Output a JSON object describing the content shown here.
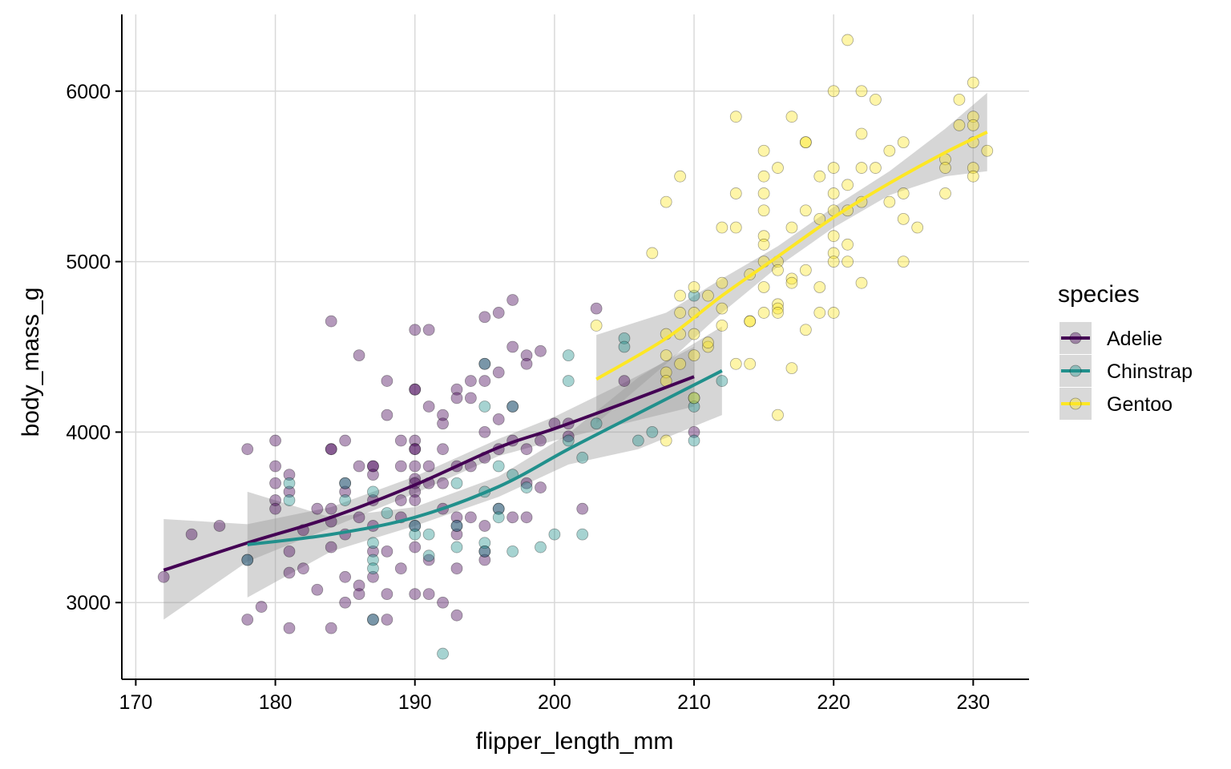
{
  "chart_data": {
    "type": "scatter",
    "title": "",
    "xlabel": "flipper_length_mm",
    "ylabel": "body_mass_g",
    "xlim": [
      169,
      234
    ],
    "ylim": [
      2550,
      6450
    ],
    "x_ticks": [
      170,
      180,
      190,
      200,
      210,
      220,
      230
    ],
    "y_ticks": [
      3000,
      4000,
      5000,
      6000
    ],
    "grid": true,
    "legend_title": "species",
    "legend_position": "right",
    "smoother": "loess with confidence band",
    "series": [
      {
        "name": "Adelie",
        "color": "#440154",
        "points": [
          [
            172,
            3150
          ],
          [
            174,
            3400
          ],
          [
            176,
            3450
          ],
          [
            178,
            3900
          ],
          [
            178,
            2900
          ],
          [
            178,
            3250
          ],
          [
            179,
            2975
          ],
          [
            180,
            3950
          ],
          [
            180,
            3800
          ],
          [
            180,
            3700
          ],
          [
            180,
            3600
          ],
          [
            180,
            3550
          ],
          [
            181,
            3750
          ],
          [
            181,
            3650
          ],
          [
            181,
            3300
          ],
          [
            181,
            3175
          ],
          [
            181,
            2850
          ],
          [
            182,
            3200
          ],
          [
            182,
            3425
          ],
          [
            183,
            3550
          ],
          [
            183,
            3075
          ],
          [
            184,
            4650
          ],
          [
            184,
            3900
          ],
          [
            184,
            3900
          ],
          [
            184,
            3550
          ],
          [
            184,
            3475
          ],
          [
            184,
            3325
          ],
          [
            184,
            2850
          ],
          [
            185,
            3950
          ],
          [
            185,
            3700
          ],
          [
            185,
            3650
          ],
          [
            185,
            3400
          ],
          [
            185,
            3150
          ],
          [
            185,
            3000
          ],
          [
            186,
            4450
          ],
          [
            186,
            3800
          ],
          [
            186,
            3500
          ],
          [
            186,
            3100
          ],
          [
            186,
            3050
          ],
          [
            187,
            3800
          ],
          [
            187,
            3800
          ],
          [
            187,
            3750
          ],
          [
            187,
            3600
          ],
          [
            187,
            3450
          ],
          [
            187,
            3300
          ],
          [
            187,
            3150
          ],
          [
            187,
            2900
          ],
          [
            188,
            4300
          ],
          [
            188,
            4100
          ],
          [
            188,
            3300
          ],
          [
            188,
            3050
          ],
          [
            188,
            2900
          ],
          [
            189,
            3950
          ],
          [
            189,
            3800
          ],
          [
            189,
            3600
          ],
          [
            189,
            3500
          ],
          [
            189,
            3200
          ],
          [
            190,
            4600
          ],
          [
            190,
            4250
          ],
          [
            190,
            4250
          ],
          [
            190,
            3950
          ],
          [
            190,
            3900
          ],
          [
            190,
            3900
          ],
          [
            190,
            3800
          ],
          [
            190,
            3725
          ],
          [
            190,
            3700
          ],
          [
            190,
            3650
          ],
          [
            190,
            3600
          ],
          [
            190,
            3450
          ],
          [
            190,
            3325
          ],
          [
            190,
            3050
          ],
          [
            191,
            4600
          ],
          [
            191,
            4150
          ],
          [
            191,
            3800
          ],
          [
            191,
            3700
          ],
          [
            191,
            3250
          ],
          [
            191,
            3050
          ],
          [
            192,
            4100
          ],
          [
            192,
            4050
          ],
          [
            192,
            3900
          ],
          [
            192,
            3700
          ],
          [
            192,
            3550
          ],
          [
            192,
            3000
          ],
          [
            193,
            4250
          ],
          [
            193,
            4200
          ],
          [
            193,
            3800
          ],
          [
            193,
            3500
          ],
          [
            193,
            3450
          ],
          [
            193,
            3400
          ],
          [
            193,
            3200
          ],
          [
            193,
            2925
          ],
          [
            194,
            4300
          ],
          [
            194,
            4200
          ],
          [
            194,
            3800
          ],
          [
            194,
            3500
          ],
          [
            195,
            4675
          ],
          [
            195,
            4400
          ],
          [
            195,
            4300
          ],
          [
            195,
            4000
          ],
          [
            195,
            3850
          ],
          [
            195,
            3450
          ],
          [
            195,
            3300
          ],
          [
            195,
            3250
          ],
          [
            196,
            4700
          ],
          [
            196,
            4350
          ],
          [
            196,
            4075
          ],
          [
            196,
            3900
          ],
          [
            196,
            3550
          ],
          [
            197,
            4775
          ],
          [
            197,
            4500
          ],
          [
            197,
            4150
          ],
          [
            197,
            3950
          ],
          [
            197,
            3500
          ],
          [
            198,
            4450
          ],
          [
            198,
            4400
          ],
          [
            198,
            3900
          ],
          [
            198,
            3700
          ],
          [
            198,
            3500
          ],
          [
            199,
            4475
          ],
          [
            199,
            3950
          ],
          [
            199,
            3675
          ],
          [
            200,
            4050
          ],
          [
            201,
            4050
          ],
          [
            201,
            3975
          ],
          [
            202,
            3550
          ],
          [
            203,
            4725
          ],
          [
            205,
            4300
          ],
          [
            210,
            4000
          ]
        ],
        "smooth": {
          "x": [
            172,
            178,
            184,
            190,
            196,
            200,
            205,
            210
          ],
          "y": [
            3190,
            3350,
            3500,
            3690,
            3910,
            4020,
            4170,
            4325
          ],
          "lower": [
            2900,
            3240,
            3440,
            3640,
            3860,
            3950,
            4050,
            4150
          ],
          "upper": [
            3490,
            3460,
            3560,
            3740,
            3960,
            4090,
            4290,
            4500
          ]
        }
      },
      {
        "name": "Chinstrap",
        "color": "#21908C",
        "points": [
          [
            178,
            3250
          ],
          [
            181,
            3700
          ],
          [
            181,
            3600
          ],
          [
            185,
            3700
          ],
          [
            185,
            3600
          ],
          [
            187,
            3650
          ],
          [
            187,
            3350
          ],
          [
            187,
            3250
          ],
          [
            187,
            3200
          ],
          [
            187,
            2900
          ],
          [
            188,
            3525
          ],
          [
            190,
            3450
          ],
          [
            190,
            3400
          ],
          [
            191,
            3400
          ],
          [
            191,
            3275
          ],
          [
            192,
            2700
          ],
          [
            193,
            3700
          ],
          [
            193,
            3450
          ],
          [
            193,
            3325
          ],
          [
            195,
            4400
          ],
          [
            195,
            4150
          ],
          [
            195,
            3650
          ],
          [
            195,
            3350
          ],
          [
            195,
            3300
          ],
          [
            196,
            3800
          ],
          [
            196,
            3550
          ],
          [
            196,
            3500
          ],
          [
            197,
            4150
          ],
          [
            197,
            3750
          ],
          [
            197,
            3300
          ],
          [
            198,
            3675
          ],
          [
            199,
            3325
          ],
          [
            200,
            3400
          ],
          [
            201,
            4450
          ],
          [
            201,
            4300
          ],
          [
            201,
            3950
          ],
          [
            202,
            3850
          ],
          [
            202,
            3400
          ],
          [
            203,
            4050
          ],
          [
            205,
            4550
          ],
          [
            205,
            4500
          ],
          [
            206,
            3950
          ],
          [
            207,
            4000
          ],
          [
            210,
            4800
          ],
          [
            210,
            4200
          ],
          [
            210,
            4150
          ],
          [
            210,
            3950
          ],
          [
            212,
            4300
          ]
        ],
        "smooth": {
          "x": [
            178,
            184,
            190,
            196,
            201,
            206,
            212
          ],
          "y": [
            3340,
            3400,
            3500,
            3680,
            3900,
            4110,
            4360
          ],
          "lower": [
            3030,
            3300,
            3450,
            3620,
            3810,
            3900,
            4100
          ],
          "upper": [
            3650,
            3500,
            3560,
            3740,
            3990,
            4320,
            4620
          ]
        }
      },
      {
        "name": "Gentoo",
        "color": "#FDE725",
        "points": [
          [
            203,
            4625
          ],
          [
            207,
            5050
          ],
          [
            208,
            5350
          ],
          [
            208,
            4575
          ],
          [
            208,
            4450
          ],
          [
            208,
            4350
          ],
          [
            208,
            4300
          ],
          [
            208,
            3950
          ],
          [
            209,
            5500
          ],
          [
            209,
            4800
          ],
          [
            209,
            4700
          ],
          [
            209,
            4575
          ],
          [
            209,
            4400
          ],
          [
            210,
            4850
          ],
          [
            210,
            4700
          ],
          [
            210,
            4575
          ],
          [
            210,
            4450
          ],
          [
            210,
            4200
          ],
          [
            211,
            4800
          ],
          [
            211,
            4500
          ],
          [
            212,
            5200
          ],
          [
            212,
            4875
          ],
          [
            212,
            4725
          ],
          [
            212,
            4625
          ],
          [
            213,
            5400
          ],
          [
            213,
            5200
          ],
          [
            213,
            4400
          ],
          [
            214,
            4925
          ],
          [
            214,
            4650
          ],
          [
            214,
            4650
          ],
          [
            214,
            4400
          ],
          [
            215,
            5650
          ],
          [
            215,
            5500
          ],
          [
            215,
            5400
          ],
          [
            215,
            5300
          ],
          [
            215,
            5150
          ],
          [
            215,
            5100
          ],
          [
            215,
            5000
          ],
          [
            215,
            4850
          ],
          [
            215,
            4700
          ],
          [
            216,
            5550
          ],
          [
            216,
            5000
          ],
          [
            216,
            4750
          ],
          [
            216,
            4725
          ],
          [
            216,
            4700
          ],
          [
            216,
            4100
          ],
          [
            217,
            5850
          ],
          [
            217,
            5200
          ],
          [
            217,
            4900
          ],
          [
            217,
            4875
          ],
          [
            217,
            4375
          ],
          [
            218,
            5700
          ],
          [
            218,
            5700
          ],
          [
            218,
            5300
          ],
          [
            218,
            4950
          ],
          [
            218,
            4600
          ],
          [
            219,
            5500
          ],
          [
            219,
            5250
          ],
          [
            219,
            4850
          ],
          [
            219,
            4700
          ],
          [
            220,
            6000
          ],
          [
            220,
            5550
          ],
          [
            220,
            5400
          ],
          [
            220,
            5300
          ],
          [
            220,
            5150
          ],
          [
            220,
            5050
          ],
          [
            220,
            5000
          ],
          [
            220,
            4700
          ],
          [
            221,
            6300
          ],
          [
            221,
            5450
          ],
          [
            221,
            5300
          ],
          [
            221,
            5100
          ],
          [
            221,
            5000
          ],
          [
            222,
            6000
          ],
          [
            222,
            5750
          ],
          [
            222,
            5550
          ],
          [
            222,
            5350
          ],
          [
            222,
            4875
          ],
          [
            223,
            5950
          ],
          [
            223,
            5550
          ],
          [
            224,
            5650
          ],
          [
            224,
            5350
          ],
          [
            225,
            5700
          ],
          [
            225,
            5400
          ],
          [
            225,
            5250
          ],
          [
            225,
            5000
          ],
          [
            226,
            5200
          ],
          [
            228,
            5600
          ],
          [
            228,
            5550
          ],
          [
            228,
            5400
          ],
          [
            229,
            5950
          ],
          [
            229,
            5800
          ],
          [
            230,
            6050
          ],
          [
            230,
            5850
          ],
          [
            230,
            5800
          ],
          [
            230,
            5700
          ],
          [
            230,
            5550
          ],
          [
            230,
            5500
          ],
          [
            231,
            5650
          ],
          [
            213,
            5850
          ],
          [
            211,
            4525
          ],
          [
            216,
            4950
          ]
        ],
        "smooth": {
          "x": [
            203,
            208,
            212,
            216,
            220,
            224,
            228,
            231
          ],
          "y": [
            4310,
            4550,
            4800,
            5030,
            5260,
            5460,
            5640,
            5760
          ],
          "lower": [
            4050,
            4400,
            4700,
            4970,
            5200,
            5390,
            5500,
            5530
          ],
          "upper": [
            4570,
            4700,
            4900,
            5090,
            5320,
            5530,
            5780,
            5990
          ]
        }
      }
    ]
  }
}
